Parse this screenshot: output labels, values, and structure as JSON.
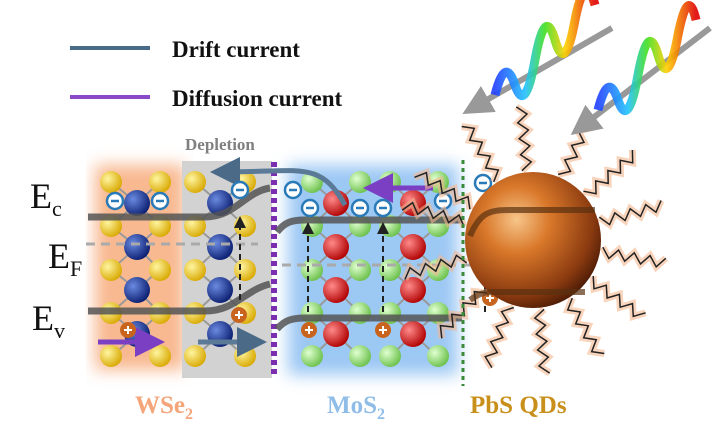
{
  "legend": {
    "items": [
      {
        "label": "Drift current",
        "color": "#4a6a88"
      },
      {
        "label": "Diffusion current",
        "color": "#7b3fc4"
      }
    ]
  },
  "regions": {
    "depletion": "Depletion",
    "wse2": {
      "label": "WSe",
      "sub": "2",
      "color": "#f4a57a"
    },
    "mos2": {
      "label": "MoS",
      "sub": "2",
      "color": "#8fbde8"
    },
    "pbs": {
      "label": "PbS QDs",
      "color": "#c8901a"
    }
  },
  "bands": {
    "ec": {
      "main": "E",
      "sub": "c"
    },
    "ef": {
      "main": "E",
      "sub": "F"
    },
    "ev": {
      "main": "E",
      "sub": "v"
    }
  },
  "colors": {
    "band": "#5a5a5a",
    "electron": "#2a7ab8",
    "hole": "#c8641e",
    "junction_wse2_mos2": "#7b2fb0",
    "junction_mos2_pbs": "#3a8a3a"
  }
}
